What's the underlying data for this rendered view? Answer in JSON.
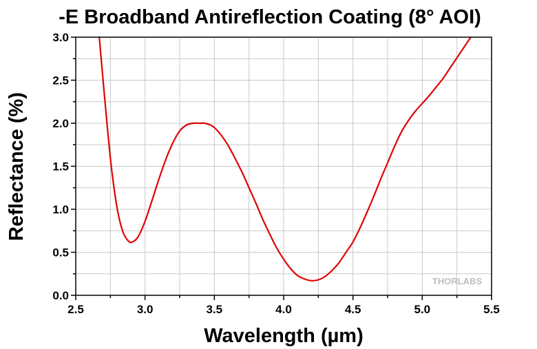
{
  "chart_data": {
    "type": "line",
    "title": "-E Broadband Antireflection Coating (8° AOI)",
    "xlabel": "Wavelength (µm)",
    "ylabel": "Reflectance (%)",
    "xlim": [
      2.5,
      5.5
    ],
    "ylim": [
      0.0,
      3.0
    ],
    "xticks": [
      2.5,
      3.0,
      3.5,
      4.0,
      4.5,
      5.0,
      5.5
    ],
    "xtick_labels": [
      "2.5",
      "3.0",
      "3.5",
      "4.0",
      "4.5",
      "5.0",
      "5.5"
    ],
    "yticks": [
      0.0,
      0.5,
      1.0,
      1.5,
      2.0,
      2.5,
      3.0
    ],
    "ytick_labels": [
      "0.0",
      "0.5",
      "1.0",
      "1.5",
      "2.0",
      "2.5",
      "3.0"
    ],
    "grid": true,
    "series": [
      {
        "color": "#e00000",
        "x": [
          2.67,
          2.7,
          2.73,
          2.76,
          2.8,
          2.84,
          2.88,
          2.91,
          2.95,
          3.0,
          3.05,
          3.1,
          3.15,
          3.2,
          3.25,
          3.3,
          3.35,
          3.4,
          3.43,
          3.47,
          3.5,
          3.55,
          3.6,
          3.65,
          3.7,
          3.75,
          3.8,
          3.85,
          3.9,
          3.95,
          4.0,
          4.05,
          4.1,
          4.15,
          4.2,
          4.25,
          4.3,
          4.35,
          4.4,
          4.45,
          4.5,
          4.55,
          4.6,
          4.65,
          4.7,
          4.75,
          4.8,
          4.85,
          4.9,
          4.95,
          5.0,
          5.05,
          5.1,
          5.15,
          5.2,
          5.25,
          5.3,
          5.35
        ],
        "y": [
          3.0,
          2.45,
          1.92,
          1.45,
          1.0,
          0.74,
          0.63,
          0.62,
          0.68,
          0.86,
          1.1,
          1.35,
          1.58,
          1.77,
          1.91,
          1.98,
          2.0,
          2.0,
          2.0,
          1.98,
          1.95,
          1.86,
          1.74,
          1.59,
          1.43,
          1.25,
          1.07,
          0.88,
          0.71,
          0.55,
          0.42,
          0.31,
          0.23,
          0.19,
          0.17,
          0.18,
          0.22,
          0.29,
          0.38,
          0.5,
          0.62,
          0.78,
          0.96,
          1.15,
          1.35,
          1.54,
          1.73,
          1.9,
          2.03,
          2.14,
          2.23,
          2.32,
          2.42,
          2.52,
          2.64,
          2.76,
          2.88,
          3.0
        ]
      }
    ]
  },
  "watermark": {
    "text": "THORLABS"
  }
}
